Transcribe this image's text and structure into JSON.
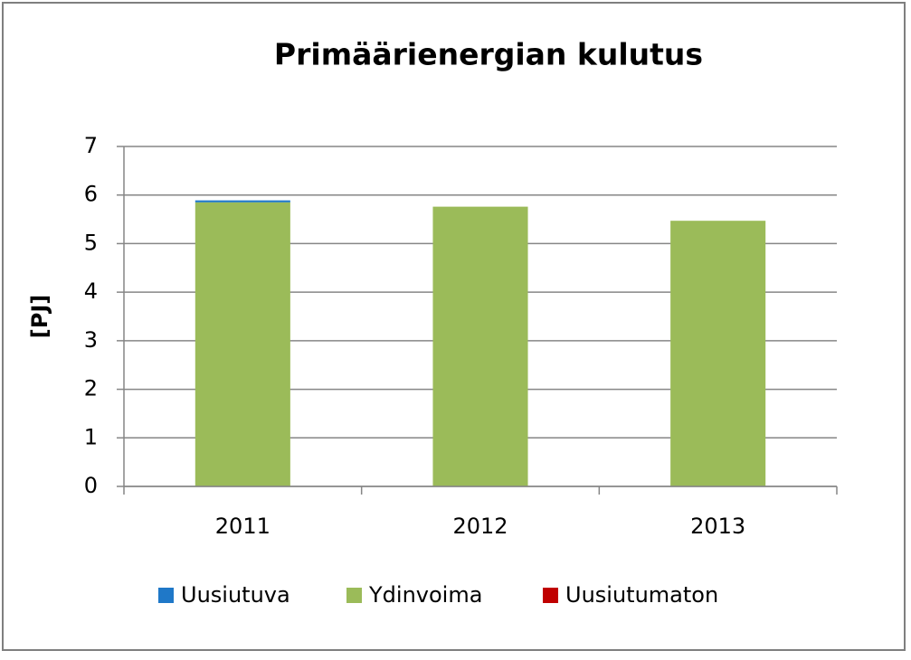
{
  "chart_data": {
    "type": "stacked-bar",
    "title": "Primäärienergian kulutus",
    "y_label": "[PJ]",
    "categories": [
      "2011",
      "2012",
      "2013"
    ],
    "series": [
      {
        "name": "Uusiutuva",
        "color": "#1f78c8",
        "values": [
          0.04,
          0,
          0
        ]
      },
      {
        "name": "Ydinvoima",
        "color": "#9bbb59",
        "values": [
          5.85,
          5.76,
          5.47
        ]
      },
      {
        "name": "Uusiutumaton",
        "color": "#c00000",
        "values": [
          0,
          0,
          0
        ]
      }
    ],
    "ylim": [
      0,
      7
    ],
    "yticks": [
      0,
      1,
      2,
      3,
      4,
      5,
      6,
      7
    ],
    "grid": true,
    "legend": "bottom"
  }
}
